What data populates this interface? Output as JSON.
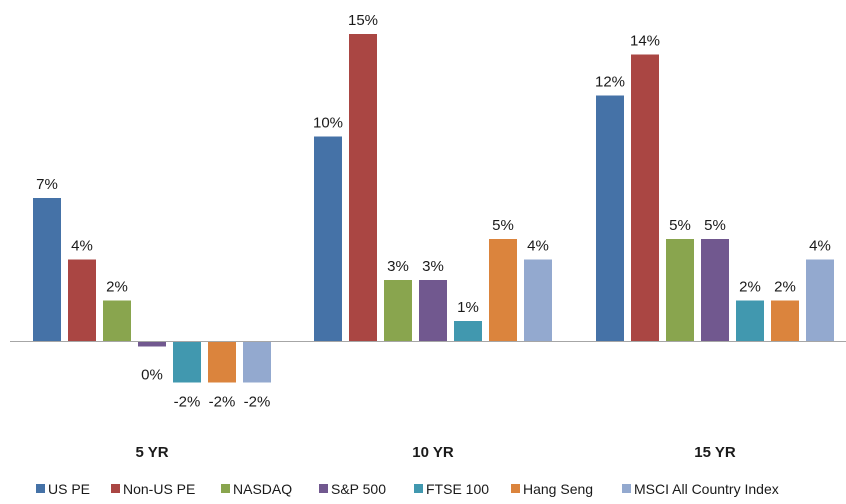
{
  "chart_data": {
    "type": "bar",
    "categories": [
      "5 YR",
      "10 YR",
      "15 YR"
    ],
    "series": [
      {
        "name": "US PE",
        "color": "#4572A7",
        "values": [
          7,
          10,
          12
        ],
        "labels": [
          "7%",
          "10%",
          "12%"
        ]
      },
      {
        "name": "Non-US PE",
        "color": "#AA4643",
        "values": [
          4,
          15,
          14
        ],
        "labels": [
          "4%",
          "15%",
          "14%"
        ]
      },
      {
        "name": "NASDAQ",
        "color": "#89A54E",
        "values": [
          2,
          3,
          5
        ],
        "labels": [
          "2%",
          "3%",
          "5%"
        ]
      },
      {
        "name": "S&P 500",
        "color": "#71588F",
        "values": [
          0,
          3,
          5
        ],
        "labels": [
          "0%",
          "3%",
          "5%"
        ]
      },
      {
        "name": "FTSE 100",
        "color": "#4198AF",
        "values": [
          -2,
          1,
          2
        ],
        "labels": [
          "-2%",
          "1%",
          "2%"
        ]
      },
      {
        "name": "Hang Seng",
        "color": "#DB843D",
        "values": [
          -2,
          5,
          2
        ],
        "labels": [
          "-2%",
          "5%",
          "2%"
        ]
      },
      {
        "name": "MSCI All Country Index",
        "color": "#93A9CF",
        "values": [
          -2,
          4,
          4
        ],
        "labels": [
          "-2%",
          "4%",
          "4%"
        ]
      }
    ],
    "title": "",
    "xlabel": "",
    "ylabel": "",
    "legend_position": "bottom",
    "grid": false
  }
}
